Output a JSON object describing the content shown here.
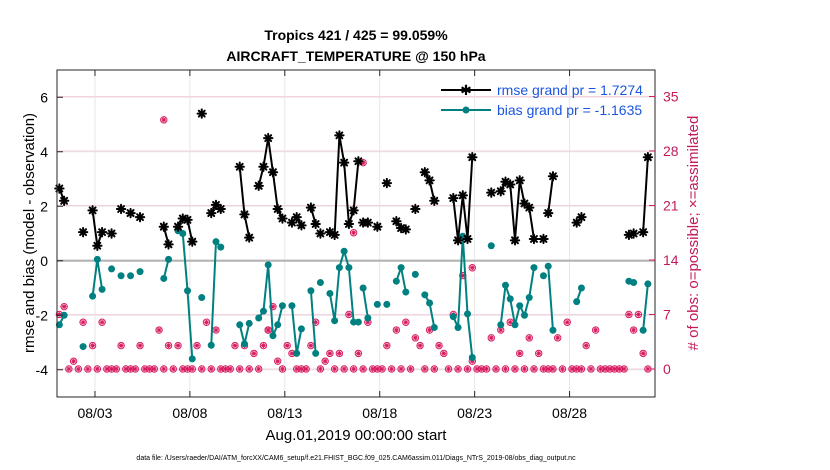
{
  "chart_data": {
    "type": "line",
    "title": "Tropics 421 / 425 = 99.059%",
    "subtitle": "AIRCRAFT_TEMPERATURE @ 150 hPa",
    "ylabel": "rmse and bias (model - observation)",
    "y2label": "# of obs: o=possible; ×=assimilated",
    "xlabel": "Aug.01,2019 00:00:00 start",
    "footer": "data file: /Users/raeder/DAI/ATM_forcXX/CAM6_setup/f.e21.FHIST_BGC.f09_025.CAM6assim.011/Diags_NTrS_2019-08/obs_diag_output.nc",
    "xlim": [
      1.0,
      32.5
    ],
    "ylim": [
      -5,
      7
    ],
    "y2lim": [
      -3.6,
      38.4
    ],
    "x_ticks": [
      3,
      8,
      13,
      18,
      23,
      28
    ],
    "x_tick_labels": [
      "08/03",
      "08/08",
      "08/13",
      "08/18",
      "08/23",
      "08/28"
    ],
    "y_ticks": [
      -4,
      -2,
      0,
      2,
      4,
      6
    ],
    "y2_ticks": [
      0,
      7,
      14,
      21,
      28,
      35
    ],
    "legend": {
      "location": "top-right",
      "rmse_label": "rmse grand pr = 1.7274",
      "bias_label": "bias grand pr = -1.1635"
    },
    "colors": {
      "rmse": "#000000",
      "bias": "#008080",
      "obs": "#d81b60",
      "zero_line": "#b3b3b3"
    },
    "series": [
      {
        "name": "rmse",
        "segments": [
          {
            "x": [
              1.125,
              1.375
            ],
            "y": [
              2.65,
              2.2
            ]
          },
          {
            "x": [
              2.875,
              3.125,
              3.375
            ],
            "y": [
              1.85,
              0.55,
              1.05
            ]
          },
          {
            "x": [
              6.625,
              6.875
            ],
            "y": [
              1.25,
              0.6
            ]
          },
          {
            "x": [
              7.375,
              7.625,
              7.875,
              8.125
            ],
            "y": [
              1.25,
              1.55,
              1.5,
              0.7
            ]
          },
          {
            "x": [
              9.125,
              9.375,
              9.625
            ],
            "y": [
              1.75,
              2.05,
              1.9
            ]
          },
          {
            "x": [
              10.625,
              10.875,
              11.125
            ],
            "y": [
              3.45,
              1.7,
              0.85
            ]
          },
          {
            "x": [
              11.625,
              11.875,
              12.125,
              12.375,
              12.625,
              12.875
            ],
            "y": [
              2.75,
              3.45,
              4.5,
              3.25,
              1.9,
              1.55
            ]
          },
          {
            "x": [
              13.375,
              13.625,
              13.875
            ],
            "y": [
              1.4,
              1.6,
              1.3
            ]
          },
          {
            "x": [
              14.375,
              14.625
            ],
            "y": [
              1.95,
              1.35
            ]
          },
          {
            "x": [
              15.375,
              15.625,
              15.875,
              16.125,
              16.375,
              16.625,
              16.875
            ],
            "y": [
              1.05,
              0.95,
              4.6,
              3.6,
              1.35,
              1.85,
              3.65
            ]
          },
          {
            "x": [
              17.125,
              17.375
            ],
            "y": [
              1.4,
              1.4
            ]
          },
          {
            "x": [
              18.875,
              19.125,
              19.375
            ],
            "y": [
              1.45,
              1.2,
              1.15
            ]
          },
          {
            "x": [
              20.375,
              20.625,
              20.875
            ],
            "y": [
              3.25,
              2.95,
              2.2
            ]
          },
          {
            "x": [
              21.875,
              22.125,
              22.375,
              22.625,
              22.875
            ],
            "y": [
              2.3,
              0.75,
              2.4,
              0.8,
              3.8
            ]
          },
          {
            "x": [
              24.375,
              24.625,
              24.875,
              25.125,
              25.375,
              25.625,
              25.875,
              26.125
            ],
            "y": [
              2.55,
              2.9,
              2.8,
              0.75,
              2.95,
              2.1,
              1.95,
              0.8
            ]
          },
          {
            "x": [
              26.875,
              27.125
            ],
            "y": [
              1.75,
              3.1
            ]
          },
          {
            "x": [
              28.375,
              28.625
            ],
            "y": [
              1.4,
              1.6
            ]
          },
          {
            "x": [
              31.125,
              31.375
            ],
            "y": [
              0.95,
              1.0
            ]
          },
          {
            "x": [
              31.875,
              32.125
            ],
            "y": [
              1.05,
              3.8
            ]
          }
        ],
        "points": [
          {
            "x": 2.375,
            "y": 1.05
          },
          {
            "x": 3.875,
            "y": 1.0
          },
          {
            "x": 4.375,
            "y": 1.9
          },
          {
            "x": 4.875,
            "y": 1.75
          },
          {
            "x": 5.375,
            "y": 1.6
          },
          {
            "x": 8.625,
            "y": 5.4
          },
          {
            "x": 14.875,
            "y": 1.0
          },
          {
            "x": 17.875,
            "y": 1.25
          },
          {
            "x": 18.375,
            "y": 2.85
          },
          {
            "x": 19.875,
            "y": 1.9
          },
          {
            "x": 23.875,
            "y": 2.5
          },
          {
            "x": 26.625,
            "y": 0.8
          }
        ]
      },
      {
        "name": "bias",
        "segments": [
          {
            "x": [
              1.125,
              1.375
            ],
            "y": [
              -2.35,
              -2.0
            ]
          },
          {
            "x": [
              2.875,
              3.125,
              3.375
            ],
            "y": [
              -1.3,
              0.05,
              -1.05
            ]
          },
          {
            "x": [
              6.625,
              6.875
            ],
            "y": [
              -0.65,
              0.05
            ]
          },
          {
            "x": [
              7.375,
              7.625,
              7.875,
              8.125
            ],
            "y": [
              1.1,
              1.0,
              -1.1,
              -3.6
            ]
          },
          {
            "x": [
              9.125,
              9.375,
              9.625
            ],
            "y": [
              -3.1,
              0.7,
              0.5
            ]
          },
          {
            "x": [
              10.625,
              10.875,
              11.125
            ],
            "y": [
              -2.35,
              -3.05,
              -2.3
            ]
          },
          {
            "x": [
              11.625,
              11.875,
              12.125,
              12.375,
              12.625,
              12.875
            ],
            "y": [
              -2.1,
              -1.85,
              -0.15,
              -2.75,
              -2.35,
              -1.65
            ]
          },
          {
            "x": [
              13.375,
              13.625,
              13.875
            ],
            "y": [
              -1.65,
              -3.4,
              -2.5
            ]
          },
          {
            "x": [
              14.375,
              14.625
            ],
            "y": [
              -1.1,
              -3.4
            ]
          },
          {
            "x": [
              15.375,
              15.625,
              15.875,
              16.125,
              16.375,
              16.625,
              16.875
            ],
            "y": [
              -1.2,
              -2.2,
              -0.25,
              0.35,
              -0.25,
              -2.25,
              -2.25
            ]
          },
          {
            "x": [
              17.125,
              17.375
            ],
            "y": [
              -1.0,
              -2.1
            ]
          },
          {
            "x": [
              18.875,
              19.125,
              19.375
            ],
            "y": [
              -0.75,
              -0.25,
              -1.15
            ]
          },
          {
            "x": [
              20.375,
              20.625,
              20.875
            ],
            "y": [
              -1.25,
              -1.55,
              -2.45
            ]
          },
          {
            "x": [
              21.875,
              22.125,
              22.375,
              22.625,
              22.875
            ],
            "y": [
              -2.05,
              -2.45,
              0.9,
              -1.95,
              -3.55
            ]
          },
          {
            "x": [
              24.375,
              24.625,
              24.875,
              25.125,
              25.375,
              25.625,
              25.875,
              26.125
            ],
            "y": [
              -2.35,
              -0.9,
              -1.4,
              -2.35,
              -1.65,
              -2.0,
              -1.35,
              -0.25
            ]
          },
          {
            "x": [
              26.875,
              27.125
            ],
            "y": [
              -0.2,
              -2.55
            ]
          },
          {
            "x": [
              28.375,
              28.625
            ],
            "y": [
              -1.5,
              -1.0
            ]
          },
          {
            "x": [
              31.125,
              31.375
            ],
            "y": [
              -0.75,
              -0.8
            ]
          },
          {
            "x": [
              31.875,
              32.125
            ],
            "y": [
              -2.55,
              -0.85
            ]
          }
        ],
        "points": [
          {
            "x": 2.375,
            "y": -3.15
          },
          {
            "x": 3.875,
            "y": -0.3
          },
          {
            "x": 4.375,
            "y": -0.55
          },
          {
            "x": 4.875,
            "y": -0.55
          },
          {
            "x": 5.375,
            "y": -0.4
          },
          {
            "x": 8.625,
            "y": -1.35
          },
          {
            "x": 14.875,
            "y": -0.8
          },
          {
            "x": 17.875,
            "y": -1.6
          },
          {
            "x": 18.375,
            "y": -1.6
          },
          {
            "x": 19.875,
            "y": -0.5
          },
          {
            "x": 23.875,
            "y": 0.55
          },
          {
            "x": 26.625,
            "y": -0.55
          }
        ]
      },
      {
        "name": "# of obs (possible and assimilated)",
        "axis": "right",
        "x": [
          1.125,
          1.375,
          1.625,
          1.875,
          2.125,
          2.375,
          2.625,
          2.875,
          3.125,
          3.375,
          3.625,
          3.875,
          4.125,
          4.375,
          4.625,
          4.875,
          5.125,
          5.375,
          5.625,
          5.875,
          6.125,
          6.375,
          6.625,
          6.875,
          7.125,
          7.375,
          7.625,
          7.875,
          8.125,
          8.375,
          8.625,
          8.875,
          9.125,
          9.375,
          9.625,
          9.875,
          10.125,
          10.375,
          10.625,
          10.875,
          11.125,
          11.375,
          11.625,
          11.875,
          12.125,
          12.375,
          12.625,
          12.875,
          13.125,
          13.375,
          13.625,
          13.875,
          14.125,
          14.375,
          14.625,
          14.875,
          15.125,
          15.375,
          15.625,
          15.875,
          16.125,
          16.375,
          16.625,
          16.875,
          17.125,
          17.375,
          17.625,
          17.875,
          18.125,
          18.375,
          18.625,
          18.875,
          19.125,
          19.375,
          19.625,
          19.875,
          20.125,
          20.375,
          20.625,
          20.875,
          21.125,
          21.375,
          21.625,
          21.875,
          22.125,
          22.375,
          22.625,
          22.875,
          23.125,
          23.375,
          23.625,
          23.875,
          24.125,
          24.375,
          24.625,
          24.875,
          25.125,
          25.375,
          25.625,
          25.875,
          26.125,
          26.375,
          26.625,
          26.875,
          27.125,
          27.375,
          27.625,
          27.875,
          28.125,
          28.375,
          28.625,
          28.875,
          29.125,
          29.375,
          29.625,
          29.875,
          30.125,
          30.375,
          30.625,
          30.875,
          31.125,
          31.375,
          31.625,
          31.875,
          32.125
        ],
        "y": [
          7,
          8,
          0,
          1,
          0,
          6,
          0,
          3,
          0,
          6,
          0,
          0,
          0,
          3,
          0,
          0,
          0,
          3,
          0,
          0,
          0,
          5,
          0,
          3,
          0,
          3,
          0,
          0,
          0,
          3,
          0,
          6,
          0,
          5,
          0,
          0,
          0,
          3,
          0,
          3,
          0,
          2,
          0,
          3,
          5,
          8,
          1,
          0,
          3,
          2,
          0,
          0,
          0,
          3,
          6,
          0,
          1,
          2,
          0,
          2,
          0,
          7,
          0,
          2,
          0,
          6,
          0,
          0,
          0,
          3,
          0,
          5,
          0,
          6,
          0,
          4,
          3,
          0,
          5,
          0,
          3,
          2,
          0,
          7,
          0,
          12,
          0,
          1,
          0,
          0,
          0,
          4,
          0,
          5,
          0,
          6,
          0,
          2,
          0,
          4,
          0,
          2,
          0,
          0,
          0,
          4,
          0,
          6,
          0,
          0,
          0,
          3,
          0,
          5,
          0,
          0,
          0,
          0,
          0,
          0,
          7,
          5,
          7,
          2,
          0
        ],
        "extra_points": [
          {
            "x": 6.625,
            "y": 32
          },
          {
            "x": 12.125,
            "y": 5
          },
          {
            "x": 16.625,
            "y": 17.5
          },
          {
            "x": 17.125,
            "y": 26.5
          },
          {
            "x": 22.875,
            "y": 13
          }
        ]
      }
    ]
  }
}
